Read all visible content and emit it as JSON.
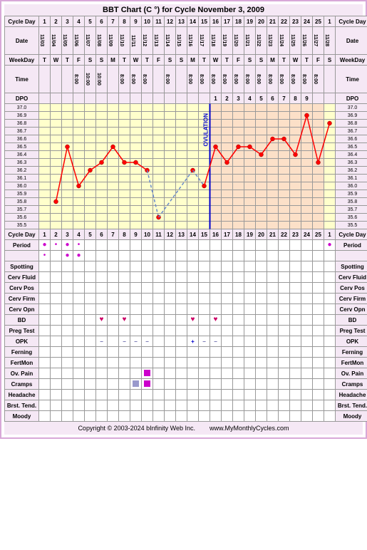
{
  "title": "BBT Chart (C °) for Cycle November 3, 2009",
  "copyright": "Copyright © 2003-2024 bInfinity Web Inc.",
  "site": "www.MyMonthlyCycles.com",
  "labels": {
    "cycleDay": "Cycle Day",
    "date": "Date",
    "weekDay": "WeekDay",
    "time": "Time",
    "dpo": "DPO",
    "period": "Period",
    "spotting": "Spotting",
    "cervFluid": "Cerv Fluid",
    "cervPos": "Cerv Pos",
    "cervFirm": "Cerv Firm",
    "cervOpn": "Cerv Opn",
    "bd": "BD",
    "pregTest": "Preg Test",
    "opk": "OPK",
    "ferning": "Ferning",
    "fertMon": "FertMon",
    "ovPain": "Ov. Pain",
    "cramps": "Cramps",
    "headache": "Headache",
    "brstTend": "Brst. Tend.",
    "moody": "Moody",
    "ovulation": "OVULATION"
  },
  "days": [
    1,
    2,
    3,
    4,
    5,
    6,
    7,
    8,
    9,
    10,
    11,
    12,
    13,
    14,
    15,
    16,
    17,
    18,
    19,
    20,
    21,
    22,
    23,
    24,
    25,
    1
  ],
  "dates": [
    "11/03",
    "11/04",
    "11/05",
    "11/06",
    "11/07",
    "11/08",
    "11/09",
    "11/10",
    "11/11",
    "11/12",
    "11/13",
    "11/14",
    "11/15",
    "11/16",
    "11/17",
    "11/18",
    "11/19",
    "11/20",
    "11/21",
    "11/22",
    "11/23",
    "11/24",
    "11/25",
    "11/26",
    "11/27",
    "11/28"
  ],
  "weekDays": [
    "T",
    "W",
    "T",
    "F",
    "S",
    "S",
    "M",
    "T",
    "W",
    "T",
    "F",
    "S",
    "S",
    "M",
    "T",
    "W",
    "T",
    "F",
    "S",
    "S",
    "M",
    "T",
    "W",
    "T",
    "F",
    "S"
  ],
  "times": [
    "",
    "",
    "",
    "8:00",
    "10:00",
    "10:00",
    "",
    "8:00",
    "8:00",
    "8:00",
    "",
    "8:00",
    "",
    "8:00",
    "8:00",
    "8:00",
    "8:00",
    "8:00",
    "8:00",
    "8:00",
    "8:00",
    "8:00",
    "8:00",
    "8:00",
    "8:00",
    ""
  ],
  "dpoVals": [
    "",
    "",
    "",
    "",
    "",
    "",
    "",
    "",
    "",
    "",
    "",
    "",
    "",
    "",
    "",
    "1",
    "2",
    "3",
    "4",
    "5",
    "6",
    "7",
    "8",
    "9",
    "",
    ""
  ],
  "tempScale": [
    "37.0",
    "36.9",
    "36.8",
    "36.7",
    "36.6",
    "36.5",
    "36.4",
    "36.3",
    "36.2",
    "36.1",
    "36.0",
    "35.9",
    "35.8",
    "35.7",
    "35.6",
    "35.5"
  ],
  "temps": {
    "values": [
      null,
      35.8,
      36.5,
      36.0,
      36.2,
      36.3,
      36.5,
      36.3,
      36.3,
      36.2,
      35.6,
      null,
      null,
      36.2,
      36.0,
      36.5,
      36.3,
      36.5,
      36.5,
      36.4,
      36.6,
      36.6,
      36.4,
      36.9,
      36.3,
      36.8
    ],
    "ovulationDay": 15,
    "lutealStart": 16,
    "dashedSegments": [
      [
        10,
        13
      ]
    ],
    "pointColor": "#ff0000",
    "lineColor": "#ff0000",
    "dashedColor": "#6688cc"
  },
  "period": {
    "rows": 2,
    "data": [
      [
        "•",
        ".",
        "•",
        ".",
        "",
        "",
        "",
        "",
        "",
        "",
        "",
        "",
        "",
        "",
        "",
        "",
        "",
        "",
        "",
        "",
        "",
        "",
        "",
        "",
        "",
        "•"
      ],
      [
        ".",
        "",
        "•",
        "•",
        "",
        "",
        "",
        "",
        "",
        "",
        "",
        "",
        "",
        "",
        "",
        "",
        "",
        "",
        "",
        "",
        "",
        "",
        "",
        "",
        "",
        ""
      ]
    ]
  },
  "bd": [
    0,
    0,
    0,
    0,
    0,
    1,
    0,
    1,
    0,
    0,
    0,
    0,
    0,
    1,
    0,
    1,
    0,
    0,
    0,
    0,
    0,
    0,
    0,
    0,
    0,
    0
  ],
  "opk": [
    "",
    "",
    "",
    "",
    "",
    "-",
    "",
    "-",
    "-",
    "-",
    "",
    "",
    "",
    "+",
    "-",
    "-",
    "",
    "",
    "",
    "",
    "",
    "",
    "",
    "",
    "",
    ""
  ],
  "ovPain": [
    0,
    0,
    0,
    0,
    0,
    0,
    0,
    0,
    0,
    1,
    0,
    0,
    0,
    0,
    0,
    0,
    0,
    0,
    0,
    0,
    0,
    0,
    0,
    0,
    0,
    0
  ],
  "cramps": [
    0,
    0,
    0,
    0,
    0,
    0,
    0,
    0,
    1,
    2,
    0,
    0,
    0,
    0,
    0,
    0,
    0,
    0,
    0,
    0,
    0,
    0,
    0,
    0,
    0,
    0
  ],
  "colors": {
    "border": "#d8a8d8",
    "headerBg": "#f5e8f5",
    "chartBg": "#ffffcc",
    "lutealBg": "#fce0c8",
    "ovLine": "#0000cc",
    "heart": "#cc0066",
    "periodDot": "#cc00cc",
    "ovPainFill": "#cc00cc",
    "crampsFill": "#9999cc",
    "opkPos": "#0000cc",
    "opkNeg": "#6666aa"
  }
}
